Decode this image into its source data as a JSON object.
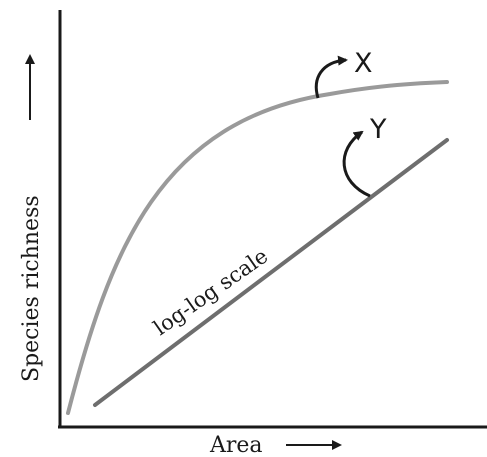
{
  "chart_data": {
    "type": "line",
    "title": "",
    "xlabel": "Area",
    "ylabel": "Species richness",
    "grid": false,
    "series": [
      {
        "label": "X",
        "shape": "saturating curve",
        "color": "#9a9a9a"
      },
      {
        "label": "Y",
        "annotation": "log-log scale",
        "shape": "straight line",
        "color": "#6e6e6e"
      }
    ]
  }
}
